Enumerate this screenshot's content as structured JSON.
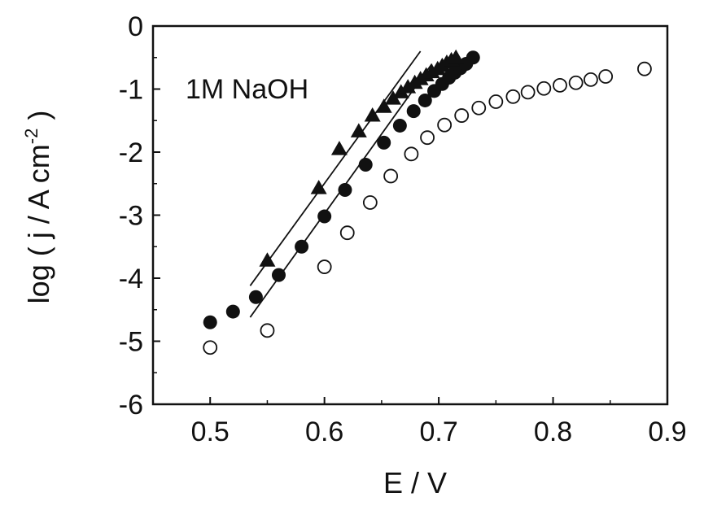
{
  "chart_data": {
    "type": "scatter",
    "title": "",
    "xlabel": "E / V",
    "ylabel_parts": [
      "log ( j / A cm",
      "-2",
      " )"
    ],
    "xlim": [
      0.45,
      0.9
    ],
    "ylim": [
      -6,
      0
    ],
    "x_ticks": [
      0.5,
      0.6,
      0.7,
      0.8,
      0.9
    ],
    "x_tick_labels": [
      "0.5",
      "0.6",
      "0.7",
      "0.8",
      "0.9"
    ],
    "y_ticks": [
      0,
      -1,
      -2,
      -3,
      -4,
      -5,
      -6
    ],
    "y_tick_labels": [
      "0",
      "-1",
      "-2",
      "-3",
      "-4",
      "-5",
      "-6"
    ],
    "annotation": "1M NaOH",
    "grid": false,
    "series": [
      {
        "marker": "open-circle",
        "color": "#111111",
        "x": [
          0.5,
          0.55,
          0.6,
          0.62,
          0.64,
          0.658,
          0.676,
          0.69,
          0.705,
          0.72,
          0.735,
          0.75,
          0.765,
          0.778,
          0.792,
          0.806,
          0.82,
          0.833,
          0.846,
          0.88
        ],
        "y": [
          -5.1,
          -4.83,
          -3.82,
          -3.28,
          -2.8,
          -2.38,
          -2.03,
          -1.77,
          -1.57,
          -1.42,
          -1.3,
          -1.2,
          -1.12,
          -1.05,
          -0.99,
          -0.94,
          -0.9,
          -0.85,
          -0.8,
          -0.68
        ]
      },
      {
        "marker": "filled-circle",
        "color": "#111111",
        "x": [
          0.5,
          0.52,
          0.54,
          0.56,
          0.58,
          0.6,
          0.618,
          0.636,
          0.652,
          0.666,
          0.678,
          0.688,
          0.696,
          0.703,
          0.709,
          0.714,
          0.719,
          0.724,
          0.73
        ],
        "y": [
          -4.7,
          -4.53,
          -4.3,
          -3.95,
          -3.5,
          -3.02,
          -2.6,
          -2.2,
          -1.85,
          -1.58,
          -1.35,
          -1.18,
          -1.03,
          -0.92,
          -0.82,
          -0.74,
          -0.67,
          -0.6,
          -0.5
        ]
      },
      {
        "marker": "filled-triangle",
        "color": "#111111",
        "x": [
          0.55,
          0.595,
          0.613,
          0.63,
          0.642,
          0.652,
          0.66,
          0.667,
          0.673,
          0.679,
          0.684,
          0.689,
          0.694,
          0.699,
          0.703,
          0.707,
          0.711,
          0.715
        ],
        "y": [
          -3.72,
          -2.57,
          -1.95,
          -1.67,
          -1.42,
          -1.28,
          -1.15,
          -1.05,
          -0.97,
          -0.9,
          -0.84,
          -0.78,
          -0.73,
          -0.68,
          -0.63,
          -0.58,
          -0.54,
          -0.5
        ]
      }
    ],
    "fit_lines": [
      {
        "x": [
          0.535,
          0.684
        ],
        "y": [
          -4.12,
          -0.4
        ]
      },
      {
        "x": [
          0.535,
          0.694
        ],
        "y": [
          -4.62,
          -0.6
        ]
      }
    ]
  }
}
